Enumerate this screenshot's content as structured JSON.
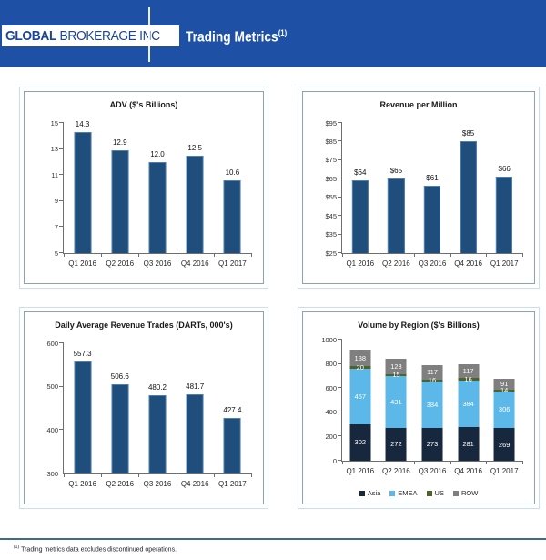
{
  "header": {
    "logo_bold": "GLOBAL",
    "logo_rest": " BROKERAGE INC",
    "title": "Trading Metrics",
    "title_sup": "(1)",
    "bg_color": "#1E51A5",
    "logo_text_color": "#1B4598"
  },
  "footer": {
    "sup": "(1)",
    "note": "Trading metrics data excludes discontinued operations.",
    "line_color": "#3E6A8E"
  },
  "chart_data": [
    {
      "type": "bar",
      "title": "ADV ($'s Billions)",
      "categories": [
        "Q1 2016",
        "Q2 2016",
        "Q3 2016",
        "Q4 2016",
        "Q1 2017"
      ],
      "values": [
        14.3,
        12.9,
        12.0,
        12.5,
        10.6
      ],
      "labels": [
        "14.3",
        "12.9",
        "12.0",
        "12.5",
        "10.6"
      ],
      "ymin": 5,
      "ymax": 15,
      "ystep": 2,
      "yticks": [
        "5",
        "7",
        "9",
        "11",
        "13",
        "15"
      ],
      "bar_color": "#1F4E7C",
      "grid": false,
      "legend_position": "none"
    },
    {
      "type": "bar",
      "title": "Revenue per Million",
      "categories": [
        "Q1 2016",
        "Q2 2016",
        "Q3 2016",
        "Q4 2016",
        "Q1 2017"
      ],
      "values": [
        64,
        65,
        61,
        85,
        66
      ],
      "labels": [
        "$64",
        "$65",
        "$61",
        "$85",
        "$66"
      ],
      "ymin": 25,
      "ymax": 95,
      "ystep": 10,
      "yticks": [
        "$25",
        "$35",
        "$45",
        "$55",
        "$65",
        "$75",
        "$85",
        "$95"
      ],
      "bar_color": "#1F4E7C",
      "grid": false,
      "legend_position": "none"
    },
    {
      "type": "bar",
      "title": "Daily Average Revenue Trades (DARTs,  000's)",
      "categories": [
        "Q1 2016",
        "Q2 2016",
        "Q3 2016",
        "Q4 2016",
        "Q1 2017"
      ],
      "values": [
        557.3,
        506.6,
        480.2,
        481.7,
        427.4
      ],
      "labels": [
        "557.3",
        "506.6",
        "480.2",
        "481.7",
        "427.4"
      ],
      "ymin": 300,
      "ymax": 600,
      "ystep": 100,
      "yticks": [
        "300",
        "400",
        "500",
        "600"
      ],
      "bar_color": "#1F4E7C",
      "grid": false,
      "legend_position": "none"
    },
    {
      "type": "stacked-bar",
      "title": "Volume by Region ($'s Billions)",
      "categories": [
        "Q1 2016",
        "Q2 2016",
        "Q3 2016",
        "Q4 2016",
        "Q1 2017"
      ],
      "series": [
        {
          "name": "Asia",
          "color": "#17283E",
          "values": [
            302,
            272,
            273,
            281,
            269
          ]
        },
        {
          "name": "EMEA",
          "color": "#5BB8E8",
          "values": [
            457,
            431,
            384,
            384,
            306
          ]
        },
        {
          "name": "US",
          "color": "#4F6228",
          "values": [
            20,
            15,
            16,
            16,
            14
          ]
        },
        {
          "name": "ROW",
          "color": "#7F7F7F",
          "values": [
            138,
            123,
            117,
            117,
            91
          ]
        }
      ],
      "ymin": 0,
      "ymax": 1000,
      "ystep": 200,
      "yticks": [
        "0",
        "200",
        "400",
        "600",
        "800",
        "1000"
      ],
      "grid": false,
      "legend_position": "bottom"
    }
  ]
}
